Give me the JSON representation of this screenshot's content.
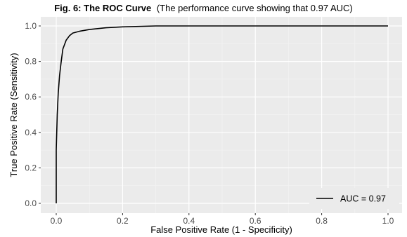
{
  "chart_data": {
    "type": "line",
    "title": "Fig. 6: The ROC Curve",
    "subtitle": "(The performance curve showing that 0.97 AUC)",
    "xlabel": "False Positive Rate (1 - Specificity)",
    "ylabel": "True Positive Rate (Sensitivity)",
    "xlim": [
      0,
      1
    ],
    "ylim": [
      0,
      1
    ],
    "x_ticks": [
      "0.0",
      "0.2",
      "0.4",
      "0.6",
      "0.8",
      "1.0"
    ],
    "y_ticks": [
      "0.0",
      "0.2",
      "0.4",
      "0.6",
      "0.8",
      "1.0"
    ],
    "grid": true,
    "legend_position": "bottom-right",
    "series": [
      {
        "name": "AUC = 0.97",
        "color": "#000000",
        "x": [
          0.0,
          0.0,
          0.003,
          0.006,
          0.01,
          0.015,
          0.02,
          0.03,
          0.04,
          0.05,
          0.07,
          0.1,
          0.15,
          0.2,
          0.3,
          0.5,
          0.7,
          1.0
        ],
        "y": [
          0.0,
          0.3,
          0.5,
          0.62,
          0.72,
          0.8,
          0.87,
          0.92,
          0.945,
          0.96,
          0.97,
          0.98,
          0.99,
          0.995,
          1.0,
          1.0,
          1.0,
          1.0
        ]
      }
    ]
  },
  "colors": {
    "panel_background": "#ebebeb",
    "grid_major": "#ffffff",
    "grid_minor": "#f3f3f3",
    "line": "#000000"
  }
}
